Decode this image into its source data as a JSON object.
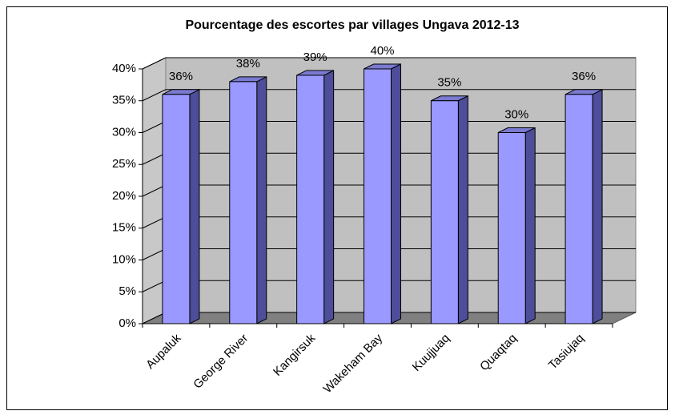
{
  "chart_data": {
    "type": "bar3d",
    "title": "Pourcentage des escortes par villages Ungava 2012-13",
    "categories": [
      "Aupaluk",
      "George River",
      "Kangirsuk",
      "Wakeham Bay",
      "Kuujjuaq",
      "Quaqtaq",
      "Tasiujaq"
    ],
    "values": [
      36,
      38,
      39,
      40,
      35,
      30,
      36
    ],
    "value_labels": [
      "36%",
      "38%",
      "39%",
      "40%",
      "35%",
      "30%",
      "36%"
    ],
    "color": "#9999ff",
    "ylim": [
      0,
      40
    ],
    "yticks": [
      {
        "value": 0,
        "label": "0%"
      },
      {
        "value": 5,
        "label": "5%"
      },
      {
        "value": 10,
        "label": "10%"
      },
      {
        "value": 15,
        "label": "15%"
      },
      {
        "value": 20,
        "label": "20%"
      },
      {
        "value": 25,
        "label": "25%"
      },
      {
        "value": 30,
        "label": "30%"
      },
      {
        "value": 35,
        "label": "35%"
      },
      {
        "value": 40,
        "label": "40%"
      }
    ],
    "grid": true
  }
}
